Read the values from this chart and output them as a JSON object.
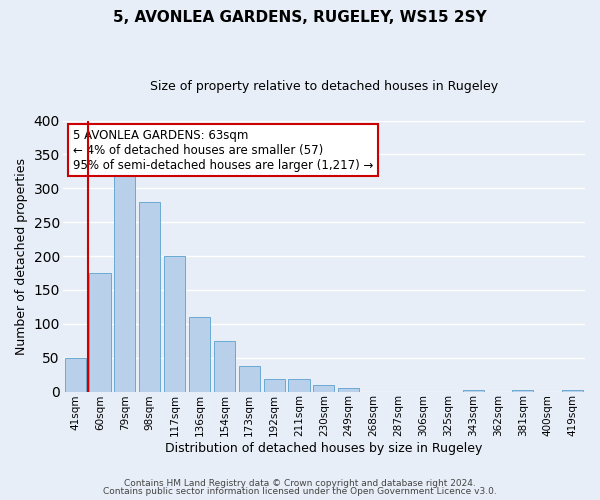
{
  "title": "5, AVONLEA GARDENS, RUGELEY, WS15 2SY",
  "subtitle": "Size of property relative to detached houses in Rugeley",
  "xlabel": "Distribution of detached houses by size in Rugeley",
  "ylabel": "Number of detached properties",
  "bar_labels": [
    "41sqm",
    "60sqm",
    "79sqm",
    "98sqm",
    "117sqm",
    "136sqm",
    "154sqm",
    "173sqm",
    "192sqm",
    "211sqm",
    "230sqm",
    "249sqm",
    "268sqm",
    "287sqm",
    "306sqm",
    "325sqm",
    "343sqm",
    "362sqm",
    "381sqm",
    "400sqm",
    "419sqm"
  ],
  "bar_heights": [
    50,
    175,
    318,
    280,
    200,
    110,
    75,
    38,
    18,
    18,
    10,
    5,
    0,
    0,
    0,
    0,
    3,
    0,
    3,
    0,
    2
  ],
  "bar_color": "#b8d0ea",
  "bar_edge_color": "#6aaad4",
  "background_color": "#e8eef7",
  "grid_color": "#ffffff",
  "vline_x": 1,
  "vline_color": "#cc0000",
  "annotation_line1": "5 AVONLEA GARDENS: 63sqm",
  "annotation_line2": "← 4% of detached houses are smaller (57)",
  "annotation_line3": "95% of semi-detached houses are larger (1,217) →",
  "annotation_box_color": "#ffffff",
  "annotation_box_edge": "#cc0000",
  "ylim": [
    0,
    400
  ],
  "yticks": [
    0,
    50,
    100,
    150,
    200,
    250,
    300,
    350,
    400
  ],
  "footer1": "Contains HM Land Registry data © Crown copyright and database right 2024.",
  "footer2": "Contains public sector information licensed under the Open Government Licence v3.0."
}
